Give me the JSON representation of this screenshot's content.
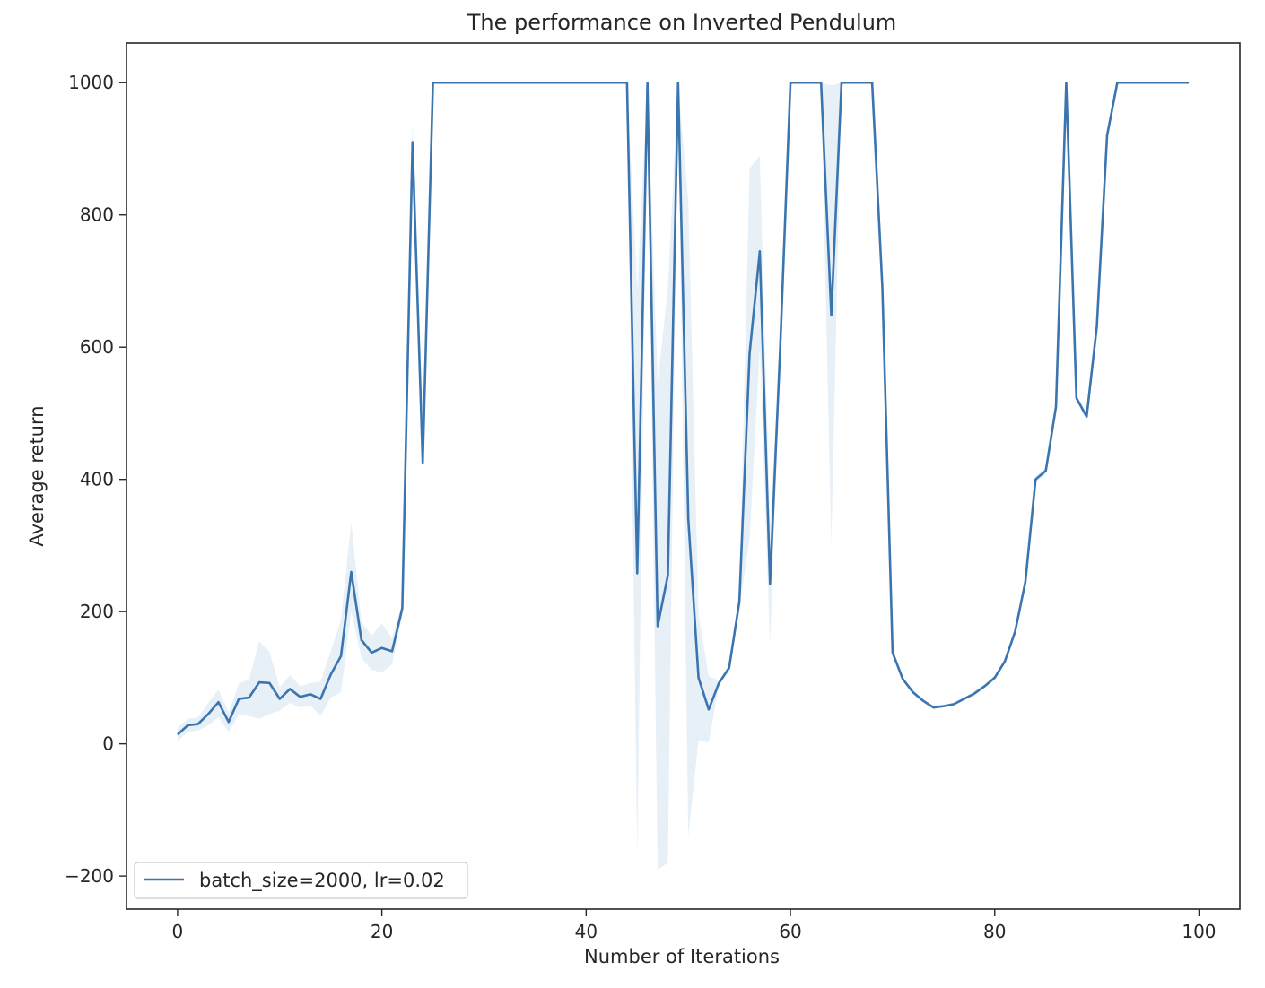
{
  "chart_data": {
    "type": "line",
    "title": "The performance on Inverted Pendulum",
    "xlabel": "Number of Iterations",
    "ylabel": "Average return",
    "xlim": [
      -5,
      104
    ],
    "ylim": [
      -250,
      1060
    ],
    "xticks": [
      0,
      20,
      40,
      60,
      80,
      100
    ],
    "xtick_labels": [
      "0",
      "20",
      "40",
      "60",
      "80",
      "100"
    ],
    "yticks": [
      -200,
      0,
      200,
      400,
      600,
      800,
      1000
    ],
    "ytick_labels": [
      "−200",
      "0",
      "200",
      "400",
      "600",
      "800",
      "1000"
    ],
    "grid": false,
    "legend_position": "lower-left",
    "series": [
      {
        "name": "batch_size=2000, lr=0.02",
        "color": "#3b75af",
        "band_color": "#dfe9f4",
        "x": [
          0,
          1,
          2,
          3,
          4,
          5,
          6,
          7,
          8,
          9,
          10,
          11,
          12,
          13,
          14,
          15,
          16,
          17,
          18,
          19,
          20,
          21,
          22,
          23,
          24,
          25,
          26,
          27,
          28,
          29,
          30,
          31,
          32,
          33,
          34,
          35,
          36,
          37,
          38,
          39,
          40,
          41,
          42,
          43,
          44,
          45,
          46,
          47,
          48,
          49,
          50,
          51,
          52,
          53,
          54,
          55,
          56,
          57,
          58,
          59,
          60,
          61,
          62,
          63,
          64,
          65,
          66,
          67,
          68,
          69,
          70,
          71,
          72,
          73,
          74,
          75,
          76,
          77,
          78,
          79,
          80,
          81,
          82,
          83,
          84,
          85,
          86,
          87,
          88,
          89,
          90,
          91,
          92,
          93,
          94,
          95,
          96,
          97,
          98,
          99
        ],
        "values": [
          14,
          28,
          30,
          45,
          63,
          33,
          68,
          70,
          93,
          92,
          68,
          83,
          71,
          75,
          68,
          105,
          133,
          260,
          157,
          138,
          145,
          140,
          205,
          910,
          425,
          1000,
          1000,
          1000,
          1000,
          1000,
          1000,
          1000,
          1000,
          1000,
          1000,
          1000,
          1000,
          1000,
          1000,
          1000,
          1000,
          1000,
          1000,
          1000,
          1000,
          258,
          1000,
          178,
          255,
          1000,
          340,
          100,
          52,
          92,
          115,
          215,
          590,
          745,
          242,
          600,
          1000,
          1000,
          1000,
          1000,
          648,
          1000,
          1000,
          1000,
          1000,
          690,
          138,
          98,
          78,
          65,
          55,
          57,
          60,
          68,
          76,
          87,
          100,
          125,
          170,
          245,
          400,
          413,
          510,
          1000,
          523,
          495,
          632,
          920,
          1000,
          1000,
          1000,
          1000,
          1000,
          1000,
          1000,
          1000
        ],
        "lower": [
          4,
          18,
          20,
          28,
          40,
          18,
          45,
          42,
          38,
          45,
          50,
          62,
          55,
          58,
          42,
          70,
          78,
          200,
          130,
          112,
          108,
          120,
          195,
          880,
          410,
          1000,
          1000,
          1000,
          1000,
          1000,
          1000,
          1000,
          1000,
          1000,
          1000,
          1000,
          1000,
          1000,
          1000,
          1000,
          1000,
          1000,
          1000,
          1000,
          1000,
          -170,
          1000,
          -190,
          -180,
          1000,
          -140,
          5,
          2,
          88,
          110,
          205,
          310,
          600,
          150,
          590,
          1000,
          1000,
          1000,
          1000,
          300,
          1000,
          1000,
          1000,
          1000,
          680,
          132,
          95,
          75,
          62,
          52,
          55,
          58,
          66,
          73,
          84,
          97,
          122,
          166,
          240,
          395,
          408,
          505,
          1000,
          518,
          490,
          625,
          915,
          1000,
          1000,
          1000,
          1000,
          1000,
          1000,
          1000,
          1000
        ],
        "upper": [
          24,
          38,
          40,
          62,
          82,
          48,
          91,
          98,
          155,
          139,
          86,
          104,
          87,
          92,
          94,
          140,
          188,
          335,
          184,
          164,
          182,
          160,
          215,
          940,
          440,
          1000,
          1000,
          1000,
          1000,
          1000,
          1000,
          1000,
          1000,
          1000,
          1000,
          1000,
          1000,
          1000,
          1000,
          1000,
          1000,
          1000,
          1000,
          1000,
          1000,
          686,
          1000,
          546,
          690,
          1000,
          820,
          195,
          102,
          96,
          120,
          225,
          870,
          890,
          334,
          610,
          1000,
          1000,
          1000,
          1000,
          996,
          1000,
          1000,
          1000,
          1000,
          700,
          144,
          101,
          81,
          68,
          58,
          59,
          62,
          70,
          79,
          90,
          103,
          128,
          174,
          250,
          405,
          418,
          515,
          1000,
          528,
          500,
          639,
          925,
          1000,
          1000,
          1000,
          1000,
          1000,
          1000,
          1000,
          1000
        ]
      }
    ]
  }
}
